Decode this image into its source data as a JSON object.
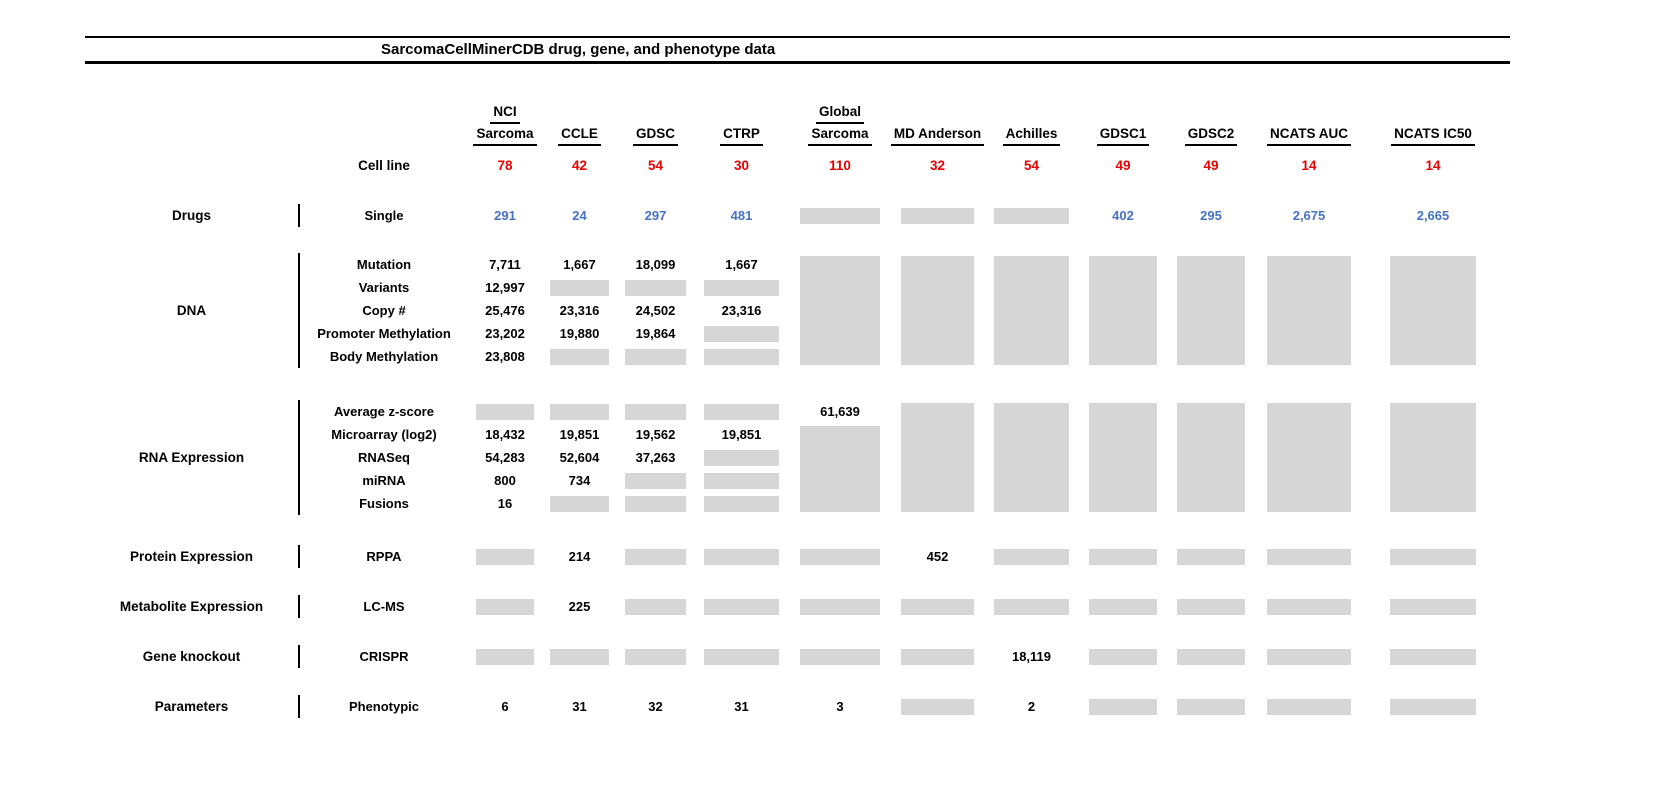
{
  "colors": {
    "number_red": "#e60000",
    "number_blue": "#4472c4",
    "missing_box_gray": "#d6d6d6"
  },
  "chart_data": {
    "type": "table",
    "title": "SarcomaCellMinerCDB drug, gene, and phenotype data",
    "columns": [
      {
        "top": "NCI",
        "bottom": "Sarcoma"
      },
      {
        "top": "",
        "bottom": "CCLE"
      },
      {
        "top": "",
        "bottom": "GDSC"
      },
      {
        "top": "",
        "bottom": "CTRP"
      },
      {
        "top": "Global",
        "bottom": "Sarcoma"
      },
      {
        "top": "",
        "bottom": "MD Anderson"
      },
      {
        "top": "",
        "bottom": "Achilles"
      },
      {
        "top": "",
        "bottom": "GDSC1"
      },
      {
        "top": "",
        "bottom": "GDSC2"
      },
      {
        "top": "",
        "bottom": "NCATS AUC"
      },
      {
        "top": "",
        "bottom": "NCATS IC50"
      }
    ],
    "cell_line_row": {
      "label": "Cell line",
      "values": [
        "78",
        "42",
        "54",
        "30",
        "110",
        "32",
        "54",
        "49",
        "49",
        "14",
        "14"
      ]
    },
    "sections": [
      {
        "category": "Drugs",
        "rows": [
          {
            "label": "Single",
            "color": "blue",
            "cells": [
              "291",
              "24",
              "297",
              "481",
              "#",
              "#",
              "#",
              "402",
              "295",
              "2,675",
              "2,665"
            ]
          }
        ]
      },
      {
        "category": "DNA",
        "rows": [
          {
            "label": "Mutation",
            "cells": [
              "7,711",
              "1,667",
              "18,099",
              "1,667",
              "=",
              "=",
              "=",
              "=",
              "=",
              "=",
              "="
            ]
          },
          {
            "label": "Variants",
            "cells": [
              "12,997",
              "#",
              "#",
              "#",
              "=",
              "=",
              "=",
              "=",
              "=",
              "=",
              "="
            ]
          },
          {
            "label": "Copy #",
            "cells": [
              "25,476",
              "23,316",
              "24,502",
              "23,316",
              "=",
              "=",
              "=",
              "=",
              "=",
              "=",
              "="
            ]
          },
          {
            "label": "Promoter Methylation",
            "cells": [
              "23,202",
              "19,880",
              "19,864",
              "#",
              "=",
              "=",
              "=",
              "=",
              "=",
              "=",
              "="
            ]
          },
          {
            "label": "Body Methylation",
            "cells": [
              "23,808",
              "#",
              "#",
              "#",
              "=",
              "=",
              "=",
              "=",
              "=",
              "=",
              "="
            ]
          }
        ]
      },
      {
        "category": "RNA Expression",
        "rows": [
          {
            "label": "Average z-score",
            "cells": [
              "#",
              "#",
              "#",
              "#",
              "61,639",
              "=",
              "=",
              "=",
              "=",
              "=",
              "="
            ]
          },
          {
            "label": "Microarray (log2)",
            "cells": [
              "18,432",
              "19,851",
              "19,562",
              "19,851",
              "=",
              "=",
              "=",
              "=",
              "=",
              "=",
              "="
            ]
          },
          {
            "label": "RNASeq",
            "cells": [
              "54,283",
              "52,604",
              "37,263",
              "#",
              "=",
              "=",
              "=",
              "=",
              "=",
              "=",
              "="
            ]
          },
          {
            "label": "miRNA",
            "cells": [
              "800",
              "734",
              "#",
              "#",
              "=",
              "=",
              "=",
              "=",
              "=",
              "=",
              "="
            ]
          },
          {
            "label": "Fusions",
            "cells": [
              "16",
              "#",
              "#",
              "#",
              "=",
              "=",
              "=",
              "=",
              "=",
              "=",
              "="
            ]
          }
        ]
      },
      {
        "category": "Protein Expression",
        "rows": [
          {
            "label": "RPPA",
            "cells": [
              "#",
              "214",
              "#",
              "#",
              "#",
              "452",
              "#",
              "#",
              "#",
              "#",
              "#"
            ]
          }
        ]
      },
      {
        "category": "Metabolite Expression",
        "rows": [
          {
            "label": "LC-MS",
            "cells": [
              "#",
              "225",
              "#",
              "#",
              "#",
              "#",
              "#",
              "#",
              "#",
              "#",
              "#"
            ]
          }
        ]
      },
      {
        "category": "Gene knockout",
        "rows": [
          {
            "label": "CRISPR",
            "cells": [
              "#",
              "#",
              "#",
              "#",
              "#",
              "#",
              "18,119",
              "#",
              "#",
              "#",
              "#"
            ]
          }
        ]
      },
      {
        "category": "Parameters",
        "rows": [
          {
            "label": "Phenotypic",
            "cells": [
              "6",
              "31",
              "32",
              "31",
              "3",
              "#",
              "2",
              "#",
              "#",
              "#",
              "#"
            ]
          }
        ]
      }
    ]
  }
}
